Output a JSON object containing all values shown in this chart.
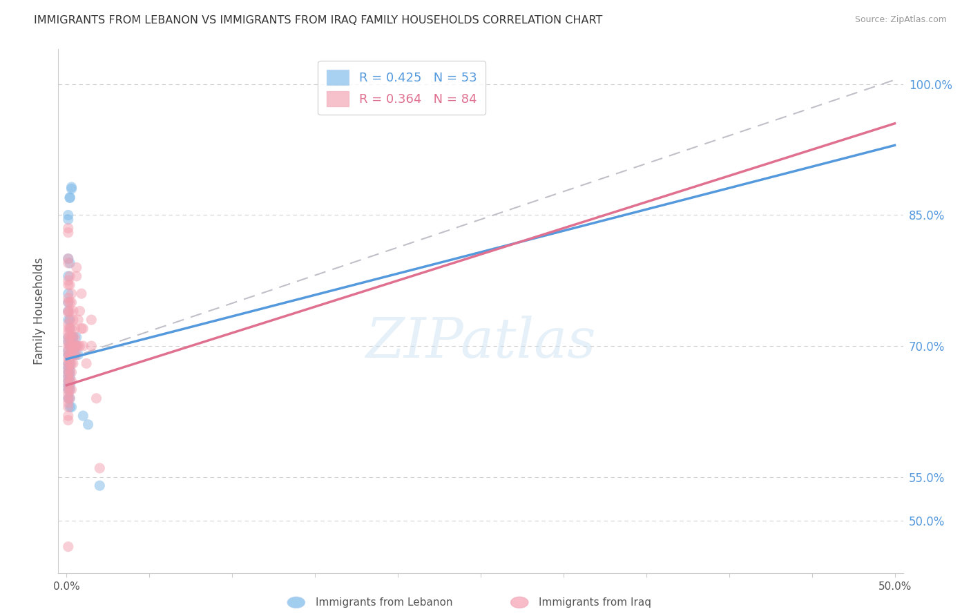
{
  "title": "IMMIGRANTS FROM LEBANON VS IMMIGRANTS FROM IRAQ FAMILY HOUSEHOLDS CORRELATION CHART",
  "source": "Source: ZipAtlas.com",
  "ylabel": "Family Households",
  "ytick_labels": [
    "50.0%",
    "55.0%",
    "70.0%",
    "85.0%",
    "100.0%"
  ],
  "ytick_values": [
    0.5,
    0.55,
    0.7,
    0.85,
    1.0
  ],
  "xtick_labels": [
    "0.0%",
    "",
    "",
    "",
    "",
    "",
    "",
    "",
    "",
    "",
    "50.0%"
  ],
  "xtick_values": [
    0.0,
    0.05,
    0.1,
    0.15,
    0.2,
    0.25,
    0.3,
    0.35,
    0.4,
    0.45,
    0.5
  ],
  "xlim": [
    -0.005,
    0.505
  ],
  "ylim": [
    0.44,
    1.04
  ],
  "legend_entry1": "R = 0.425   N = 53",
  "legend_entry2": "R = 0.364   N = 84",
  "lebanon_color": "#7ab8e8",
  "iraq_color": "#f4a0b0",
  "background_color": "#ffffff",
  "grid_color": "#d0d0d0",
  "watermark_text": "ZIPatlas",
  "lebanon_line": {
    "x0": 0.0,
    "y0": 0.685,
    "x1": 0.5,
    "y1": 0.93
  },
  "iraq_line": {
    "x0": 0.0,
    "y0": 0.655,
    "x1": 0.5,
    "y1": 0.955
  },
  "dashed_line": {
    "x0": 0.0,
    "y0": 0.685,
    "x1": 0.5,
    "y1": 1.005
  },
  "lebanon_points": [
    [
      0.001,
      0.85
    ],
    [
      0.001,
      0.845
    ],
    [
      0.002,
      0.87
    ],
    [
      0.002,
      0.87
    ],
    [
      0.003,
      0.88
    ],
    [
      0.003,
      0.882
    ],
    [
      0.001,
      0.8
    ],
    [
      0.002,
      0.795
    ],
    [
      0.001,
      0.78
    ],
    [
      0.001,
      0.76
    ],
    [
      0.001,
      0.75
    ],
    [
      0.001,
      0.74
    ],
    [
      0.001,
      0.73
    ],
    [
      0.002,
      0.73
    ],
    [
      0.002,
      0.72
    ],
    [
      0.001,
      0.71
    ],
    [
      0.001,
      0.705
    ],
    [
      0.002,
      0.705
    ],
    [
      0.002,
      0.7
    ],
    [
      0.001,
      0.695
    ],
    [
      0.001,
      0.69
    ],
    [
      0.002,
      0.69
    ],
    [
      0.002,
      0.685
    ],
    [
      0.001,
      0.68
    ],
    [
      0.002,
      0.68
    ],
    [
      0.001,
      0.675
    ],
    [
      0.002,
      0.675
    ],
    [
      0.001,
      0.67
    ],
    [
      0.002,
      0.67
    ],
    [
      0.001,
      0.665
    ],
    [
      0.002,
      0.665
    ],
    [
      0.001,
      0.66
    ],
    [
      0.002,
      0.66
    ],
    [
      0.001,
      0.655
    ],
    [
      0.002,
      0.655
    ],
    [
      0.001,
      0.65
    ],
    [
      0.002,
      0.65
    ],
    [
      0.001,
      0.64
    ],
    [
      0.002,
      0.64
    ],
    [
      0.002,
      0.63
    ],
    [
      0.003,
      0.63
    ],
    [
      0.003,
      0.7
    ],
    [
      0.003,
      0.71
    ],
    [
      0.004,
      0.7
    ],
    [
      0.004,
      0.71
    ],
    [
      0.005,
      0.7
    ],
    [
      0.005,
      0.69
    ],
    [
      0.006,
      0.7
    ],
    [
      0.006,
      0.71
    ],
    [
      0.007,
      0.69
    ],
    [
      0.01,
      0.62
    ],
    [
      0.013,
      0.61
    ],
    [
      0.02,
      0.54
    ]
  ],
  "iraq_points": [
    [
      0.001,
      0.835
    ],
    [
      0.001,
      0.83
    ],
    [
      0.001,
      0.8
    ],
    [
      0.001,
      0.795
    ],
    [
      0.001,
      0.775
    ],
    [
      0.001,
      0.77
    ],
    [
      0.001,
      0.755
    ],
    [
      0.001,
      0.75
    ],
    [
      0.001,
      0.74
    ],
    [
      0.001,
      0.738
    ],
    [
      0.001,
      0.725
    ],
    [
      0.001,
      0.72
    ],
    [
      0.001,
      0.715
    ],
    [
      0.001,
      0.71
    ],
    [
      0.001,
      0.705
    ],
    [
      0.001,
      0.7
    ],
    [
      0.001,
      0.695
    ],
    [
      0.001,
      0.69
    ],
    [
      0.001,
      0.685
    ],
    [
      0.001,
      0.68
    ],
    [
      0.001,
      0.675
    ],
    [
      0.001,
      0.67
    ],
    [
      0.001,
      0.665
    ],
    [
      0.001,
      0.66
    ],
    [
      0.001,
      0.655
    ],
    [
      0.001,
      0.65
    ],
    [
      0.001,
      0.645
    ],
    [
      0.001,
      0.64
    ],
    [
      0.001,
      0.635
    ],
    [
      0.001,
      0.63
    ],
    [
      0.001,
      0.62
    ],
    [
      0.001,
      0.615
    ],
    [
      0.002,
      0.78
    ],
    [
      0.002,
      0.77
    ],
    [
      0.002,
      0.75
    ],
    [
      0.002,
      0.74
    ],
    [
      0.002,
      0.73
    ],
    [
      0.002,
      0.72
    ],
    [
      0.002,
      0.71
    ],
    [
      0.002,
      0.7
    ],
    [
      0.002,
      0.69
    ],
    [
      0.002,
      0.68
    ],
    [
      0.002,
      0.67
    ],
    [
      0.002,
      0.66
    ],
    [
      0.002,
      0.65
    ],
    [
      0.002,
      0.64
    ],
    [
      0.003,
      0.76
    ],
    [
      0.003,
      0.75
    ],
    [
      0.003,
      0.72
    ],
    [
      0.003,
      0.71
    ],
    [
      0.003,
      0.7
    ],
    [
      0.003,
      0.69
    ],
    [
      0.003,
      0.68
    ],
    [
      0.003,
      0.67
    ],
    [
      0.003,
      0.66
    ],
    [
      0.003,
      0.65
    ],
    [
      0.004,
      0.74
    ],
    [
      0.004,
      0.73
    ],
    [
      0.004,
      0.71
    ],
    [
      0.004,
      0.7
    ],
    [
      0.004,
      0.69
    ],
    [
      0.004,
      0.68
    ],
    [
      0.005,
      0.72
    ],
    [
      0.005,
      0.71
    ],
    [
      0.005,
      0.7
    ],
    [
      0.005,
      0.69
    ],
    [
      0.006,
      0.79
    ],
    [
      0.006,
      0.78
    ],
    [
      0.006,
      0.7
    ],
    [
      0.006,
      0.69
    ],
    [
      0.007,
      0.73
    ],
    [
      0.007,
      0.7
    ],
    [
      0.008,
      0.74
    ],
    [
      0.008,
      0.7
    ],
    [
      0.009,
      0.76
    ],
    [
      0.009,
      0.72
    ],
    [
      0.01,
      0.72
    ],
    [
      0.01,
      0.7
    ],
    [
      0.012,
      0.68
    ],
    [
      0.015,
      0.73
    ],
    [
      0.015,
      0.7
    ],
    [
      0.018,
      0.64
    ],
    [
      0.02,
      0.56
    ],
    [
      0.001,
      0.47
    ]
  ]
}
